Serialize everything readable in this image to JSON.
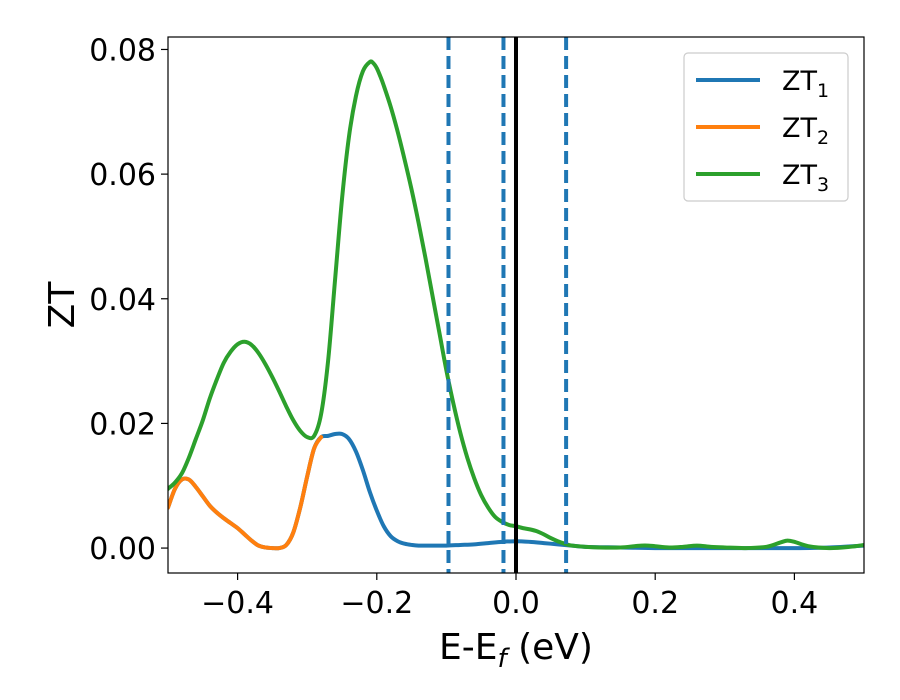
{
  "chart_data": {
    "type": "line",
    "title": "",
    "xlabel": "E-E",
    "xlabel_sub": "f",
    "xlabel_unit": " (eV)",
    "ylabel": "ZT",
    "xlim": [
      -0.5,
      0.5
    ],
    "ylim": [
      -0.004,
      0.082
    ],
    "xticks": [
      -0.4,
      -0.2,
      0.0,
      0.2,
      0.4
    ],
    "xtick_labels": [
      "−0.4",
      "−0.2",
      "0.0",
      "0.2",
      "0.4"
    ],
    "yticks": [
      0.0,
      0.02,
      0.04,
      0.06,
      0.08
    ],
    "ytick_labels": [
      "0.00",
      "0.02",
      "0.04",
      "0.06",
      "0.08"
    ],
    "grid": false,
    "legend_position": "top-right",
    "fermi_line": {
      "x": 0.0,
      "color": "#000000"
    },
    "vlines_dashed": {
      "x": [
        -0.097,
        -0.018,
        0.072
      ],
      "color": "#1f77b4"
    },
    "series": [
      {
        "name": "ZT",
        "sub": "1",
        "color": "#1f77b4",
        "x": [
          -0.5,
          -0.49,
          -0.48,
          -0.47,
          -0.46,
          -0.45,
          -0.44,
          -0.43,
          -0.42,
          -0.41,
          -0.4,
          -0.39,
          -0.38,
          -0.37,
          -0.36,
          -0.35,
          -0.34,
          -0.33,
          -0.32,
          -0.31,
          -0.3,
          -0.29,
          -0.28,
          -0.27,
          -0.26,
          -0.25,
          -0.24,
          -0.23,
          -0.22,
          -0.21,
          -0.2,
          -0.19,
          -0.18,
          -0.17,
          -0.16,
          -0.15,
          -0.14,
          -0.12,
          -0.1,
          -0.08,
          -0.06,
          -0.04,
          -0.02,
          0.0,
          0.02,
          0.04,
          0.06,
          0.08,
          0.1,
          0.15,
          0.2,
          0.25,
          0.3,
          0.35,
          0.4,
          0.45,
          0.5
        ],
        "y": [
          0.0065,
          0.0095,
          0.011,
          0.011,
          0.0098,
          0.0083,
          0.0068,
          0.0057,
          0.0048,
          0.004,
          0.0032,
          0.0022,
          0.0012,
          0.0004,
          0.0001,
          0.0,
          0.0,
          0.0005,
          0.0025,
          0.0065,
          0.0115,
          0.016,
          0.0178,
          0.018,
          0.0183,
          0.0183,
          0.0175,
          0.0155,
          0.0125,
          0.009,
          0.006,
          0.0035,
          0.0019,
          0.0011,
          0.0007,
          0.0005,
          0.0004,
          0.0004,
          0.0004,
          0.0005,
          0.0006,
          0.0008,
          0.001,
          0.0011,
          0.001,
          0.0008,
          0.0006,
          0.0004,
          0.0002,
          0.0001,
          0.0,
          0.0,
          0.0,
          0.0,
          0.0,
          0.0001,
          0.0004
        ]
      },
      {
        "name": "ZT",
        "sub": "2",
        "color": "#ff7f0e",
        "x": [
          -0.5,
          -0.49,
          -0.48,
          -0.47,
          -0.46,
          -0.45,
          -0.44,
          -0.43,
          -0.42,
          -0.41,
          -0.4,
          -0.39,
          -0.38,
          -0.37,
          -0.36,
          -0.35,
          -0.34,
          -0.33,
          -0.32,
          -0.31,
          -0.3,
          -0.29,
          -0.28
        ],
        "y": [
          0.0065,
          0.0095,
          0.011,
          0.011,
          0.0098,
          0.0083,
          0.0068,
          0.0057,
          0.0048,
          0.004,
          0.0032,
          0.0022,
          0.0012,
          0.0004,
          0.0001,
          0.0,
          0.0,
          0.0005,
          0.0025,
          0.0065,
          0.0115,
          0.016,
          0.0178
        ]
      },
      {
        "name": "ZT",
        "sub": "3",
        "color": "#2ca02c",
        "x": [
          -0.5,
          -0.49,
          -0.48,
          -0.47,
          -0.46,
          -0.45,
          -0.44,
          -0.43,
          -0.42,
          -0.41,
          -0.4,
          -0.39,
          -0.38,
          -0.37,
          -0.36,
          -0.35,
          -0.34,
          -0.33,
          -0.32,
          -0.31,
          -0.3,
          -0.29,
          -0.28,
          -0.27,
          -0.26,
          -0.25,
          -0.24,
          -0.23,
          -0.22,
          -0.21,
          -0.205,
          -0.2,
          -0.195,
          -0.19,
          -0.18,
          -0.17,
          -0.16,
          -0.15,
          -0.14,
          -0.13,
          -0.12,
          -0.11,
          -0.1,
          -0.09,
          -0.08,
          -0.07,
          -0.06,
          -0.05,
          -0.04,
          -0.03,
          -0.02,
          -0.01,
          0.0,
          0.01,
          0.02,
          0.03,
          0.04,
          0.05,
          0.06,
          0.07,
          0.08,
          0.1,
          0.12,
          0.15,
          0.17,
          0.18,
          0.19,
          0.2,
          0.22,
          0.24,
          0.26,
          0.28,
          0.3,
          0.33,
          0.36,
          0.38,
          0.39,
          0.4,
          0.42,
          0.45,
          0.48,
          0.5
        ],
        "y": [
          0.0095,
          0.0105,
          0.012,
          0.0145,
          0.0175,
          0.0205,
          0.024,
          0.027,
          0.0297,
          0.0315,
          0.0327,
          0.0331,
          0.0326,
          0.0313,
          0.0295,
          0.0274,
          0.0251,
          0.0227,
          0.0205,
          0.0188,
          0.0178,
          0.018,
          0.0215,
          0.03,
          0.043,
          0.056,
          0.066,
          0.0725,
          0.0765,
          0.078,
          0.0778,
          0.077,
          0.0757,
          0.0742,
          0.0708,
          0.0668,
          0.0623,
          0.0575,
          0.0522,
          0.0465,
          0.0405,
          0.0345,
          0.0285,
          0.0232,
          0.0185,
          0.0145,
          0.0112,
          0.0085,
          0.0065,
          0.005,
          0.0042,
          0.0037,
          0.0035,
          0.0032,
          0.003,
          0.0027,
          0.0022,
          0.0016,
          0.0011,
          0.0007,
          0.0004,
          0.0002,
          0.0001,
          0.0001,
          0.0003,
          0.0004,
          0.0004,
          0.0003,
          0.0001,
          0.0002,
          0.0004,
          0.0002,
          0.0001,
          0.0,
          0.0002,
          0.0009,
          0.0012,
          0.001,
          0.0003,
          0.0,
          0.0002,
          0.0005
        ]
      }
    ]
  }
}
